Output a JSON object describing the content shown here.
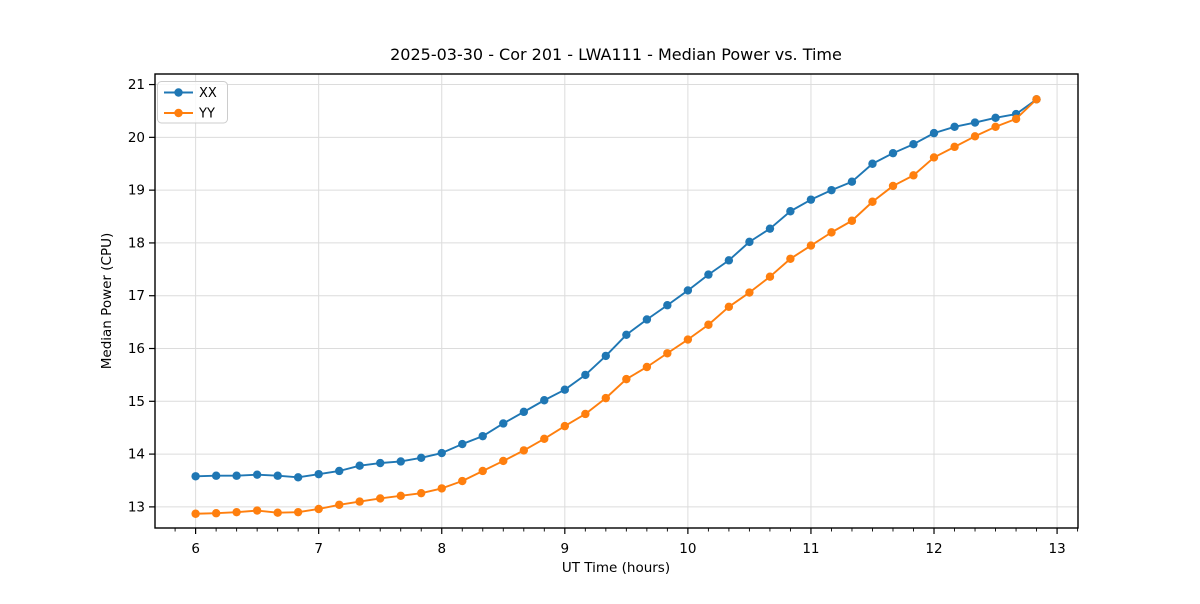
{
  "chart_data": {
    "type": "line",
    "title": "2025-03-30 - Cor 201 - LWA111 - Median Power vs. Time",
    "xlabel": "UT Time (hours)",
    "ylabel": "Median Power (CPU)",
    "xlim": [
      5.67,
      13.17
    ],
    "ylim": [
      12.6,
      21.2
    ],
    "xticks": [
      6,
      7,
      8,
      9,
      10,
      11,
      12,
      13
    ],
    "yticks": [
      13,
      14,
      15,
      16,
      17,
      18,
      19,
      20,
      21
    ],
    "x_minor_tick_step_hours": 0.1667,
    "grid": "major-both-axes",
    "legend_position": "upper-left",
    "x": [
      6.0,
      6.167,
      6.333,
      6.5,
      6.667,
      6.833,
      7.0,
      7.167,
      7.333,
      7.5,
      7.667,
      7.833,
      8.0,
      8.167,
      8.333,
      8.5,
      8.667,
      8.833,
      9.0,
      9.167,
      9.333,
      9.5,
      9.667,
      9.833,
      10.0,
      10.167,
      10.333,
      10.5,
      10.667,
      10.833,
      11.0,
      11.167,
      11.333,
      11.5,
      11.667,
      11.833,
      12.0,
      12.167,
      12.333,
      12.5,
      12.667,
      12.833
    ],
    "series": [
      {
        "name": "XX",
        "color": "#1f77b4",
        "marker": "circle",
        "values": [
          13.58,
          13.59,
          13.59,
          13.61,
          13.59,
          13.56,
          13.62,
          13.68,
          13.78,
          13.83,
          13.86,
          13.93,
          14.02,
          14.19,
          14.34,
          14.58,
          14.8,
          15.02,
          15.22,
          15.5,
          15.86,
          16.26,
          16.55,
          16.82,
          17.1,
          17.4,
          17.67,
          18.02,
          18.27,
          18.6,
          18.82,
          19.0,
          19.16,
          19.5,
          19.7,
          19.87,
          20.08,
          20.2,
          20.28,
          20.37,
          20.44,
          20.72
        ]
      },
      {
        "name": "YY",
        "color": "#ff7f0e",
        "marker": "circle",
        "values": [
          12.87,
          12.88,
          12.9,
          12.93,
          12.89,
          12.9,
          12.96,
          13.04,
          13.1,
          13.16,
          13.21,
          13.26,
          13.35,
          13.49,
          13.68,
          13.87,
          14.07,
          14.29,
          14.53,
          14.76,
          15.06,
          15.42,
          15.65,
          15.91,
          16.17,
          16.45,
          16.79,
          17.06,
          17.36,
          17.7,
          17.95,
          18.2,
          18.42,
          18.78,
          19.08,
          19.28,
          19.62,
          19.82,
          20.02,
          20.2,
          20.35,
          20.72
        ]
      }
    ]
  },
  "colors": {
    "background": "#ffffff",
    "grid": "#dcdcdc",
    "spine": "#000000",
    "tick": "#000000",
    "legend_border": "#cccccc",
    "legend_fill": "rgba(255,255,255,0.8)"
  }
}
